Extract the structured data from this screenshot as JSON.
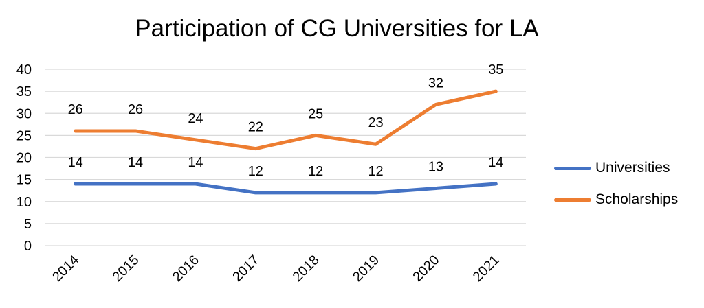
{
  "chart_data": {
    "type": "line",
    "title": "Participation of CG Universities for LA",
    "categories": [
      "2014",
      "2015",
      "2016",
      "2017",
      "2018",
      "2019",
      "2020",
      "2021"
    ],
    "series": [
      {
        "name": "Universities",
        "color": "#4472C4",
        "values": [
          14,
          14,
          14,
          12,
          12,
          12,
          13,
          14
        ]
      },
      {
        "name": "Scholarships",
        "color": "#ED7D31",
        "values": [
          26,
          26,
          24,
          22,
          25,
          23,
          32,
          35
        ]
      }
    ],
    "ylim": [
      0,
      40
    ],
    "yticks": [
      "0",
      "5",
      "10",
      "15",
      "20",
      "25",
      "30",
      "35",
      "40"
    ],
    "grid": true,
    "legend": "right",
    "data_labels": true,
    "xlabel": "",
    "ylabel": ""
  }
}
